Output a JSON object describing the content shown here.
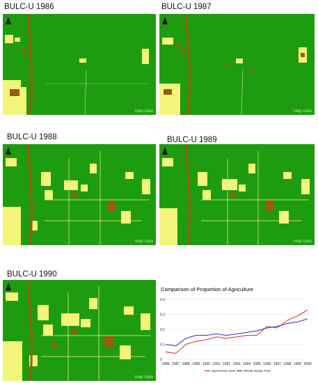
{
  "panels": [
    {
      "label": "BULC-U 1986",
      "watermark": "Map Data"
    },
    {
      "label": "BULC-U 1987",
      "watermark": "Map Data"
    },
    {
      "label": "BULC-U 1988",
      "watermark": "Map Data"
    },
    {
      "label": "BULC-U 1989",
      "watermark": "Map Data"
    },
    {
      "label": "BULC-U 1990",
      "watermark": "Map Data"
    }
  ],
  "colors": {
    "forest": "#1e9c10",
    "agriculture": "#f3f57a",
    "river": "#9a5a10"
  },
  "icons": {
    "north_arrow": "north-arrow-icon"
  },
  "chart_data": {
    "type": "line",
    "title": "Comparison of Proportion of Agriculture",
    "categories": [
      "1986",
      "1987",
      "1988",
      "1989",
      "1990",
      "1991",
      "1992",
      "1993",
      "1994",
      "1995",
      "1996",
      "1997",
      "1998",
      "1999",
      "2000"
    ],
    "ylim": [
      0,
      0.4
    ],
    "yticks": [
      "0",
      "0.1",
      "0.2",
      "0.3",
      "0.4"
    ],
    "grid": true,
    "legend_position": "bottom",
    "series": [
      {
        "name": "Querencia Area",
        "color": "#e53935",
        "values": [
          0.05,
          0.04,
          0.1,
          0.12,
          0.13,
          0.15,
          0.14,
          0.15,
          0.16,
          0.16,
          0.22,
          0.21,
          0.26,
          0.29,
          0.33
        ]
      },
      {
        "name": "Whole Study Area",
        "color": "#3140c8",
        "values": [
          0.1,
          0.09,
          0.14,
          0.16,
          0.16,
          0.17,
          0.16,
          0.17,
          0.18,
          0.19,
          0.21,
          0.22,
          0.24,
          0.25,
          0.27
        ]
      }
    ]
  }
}
